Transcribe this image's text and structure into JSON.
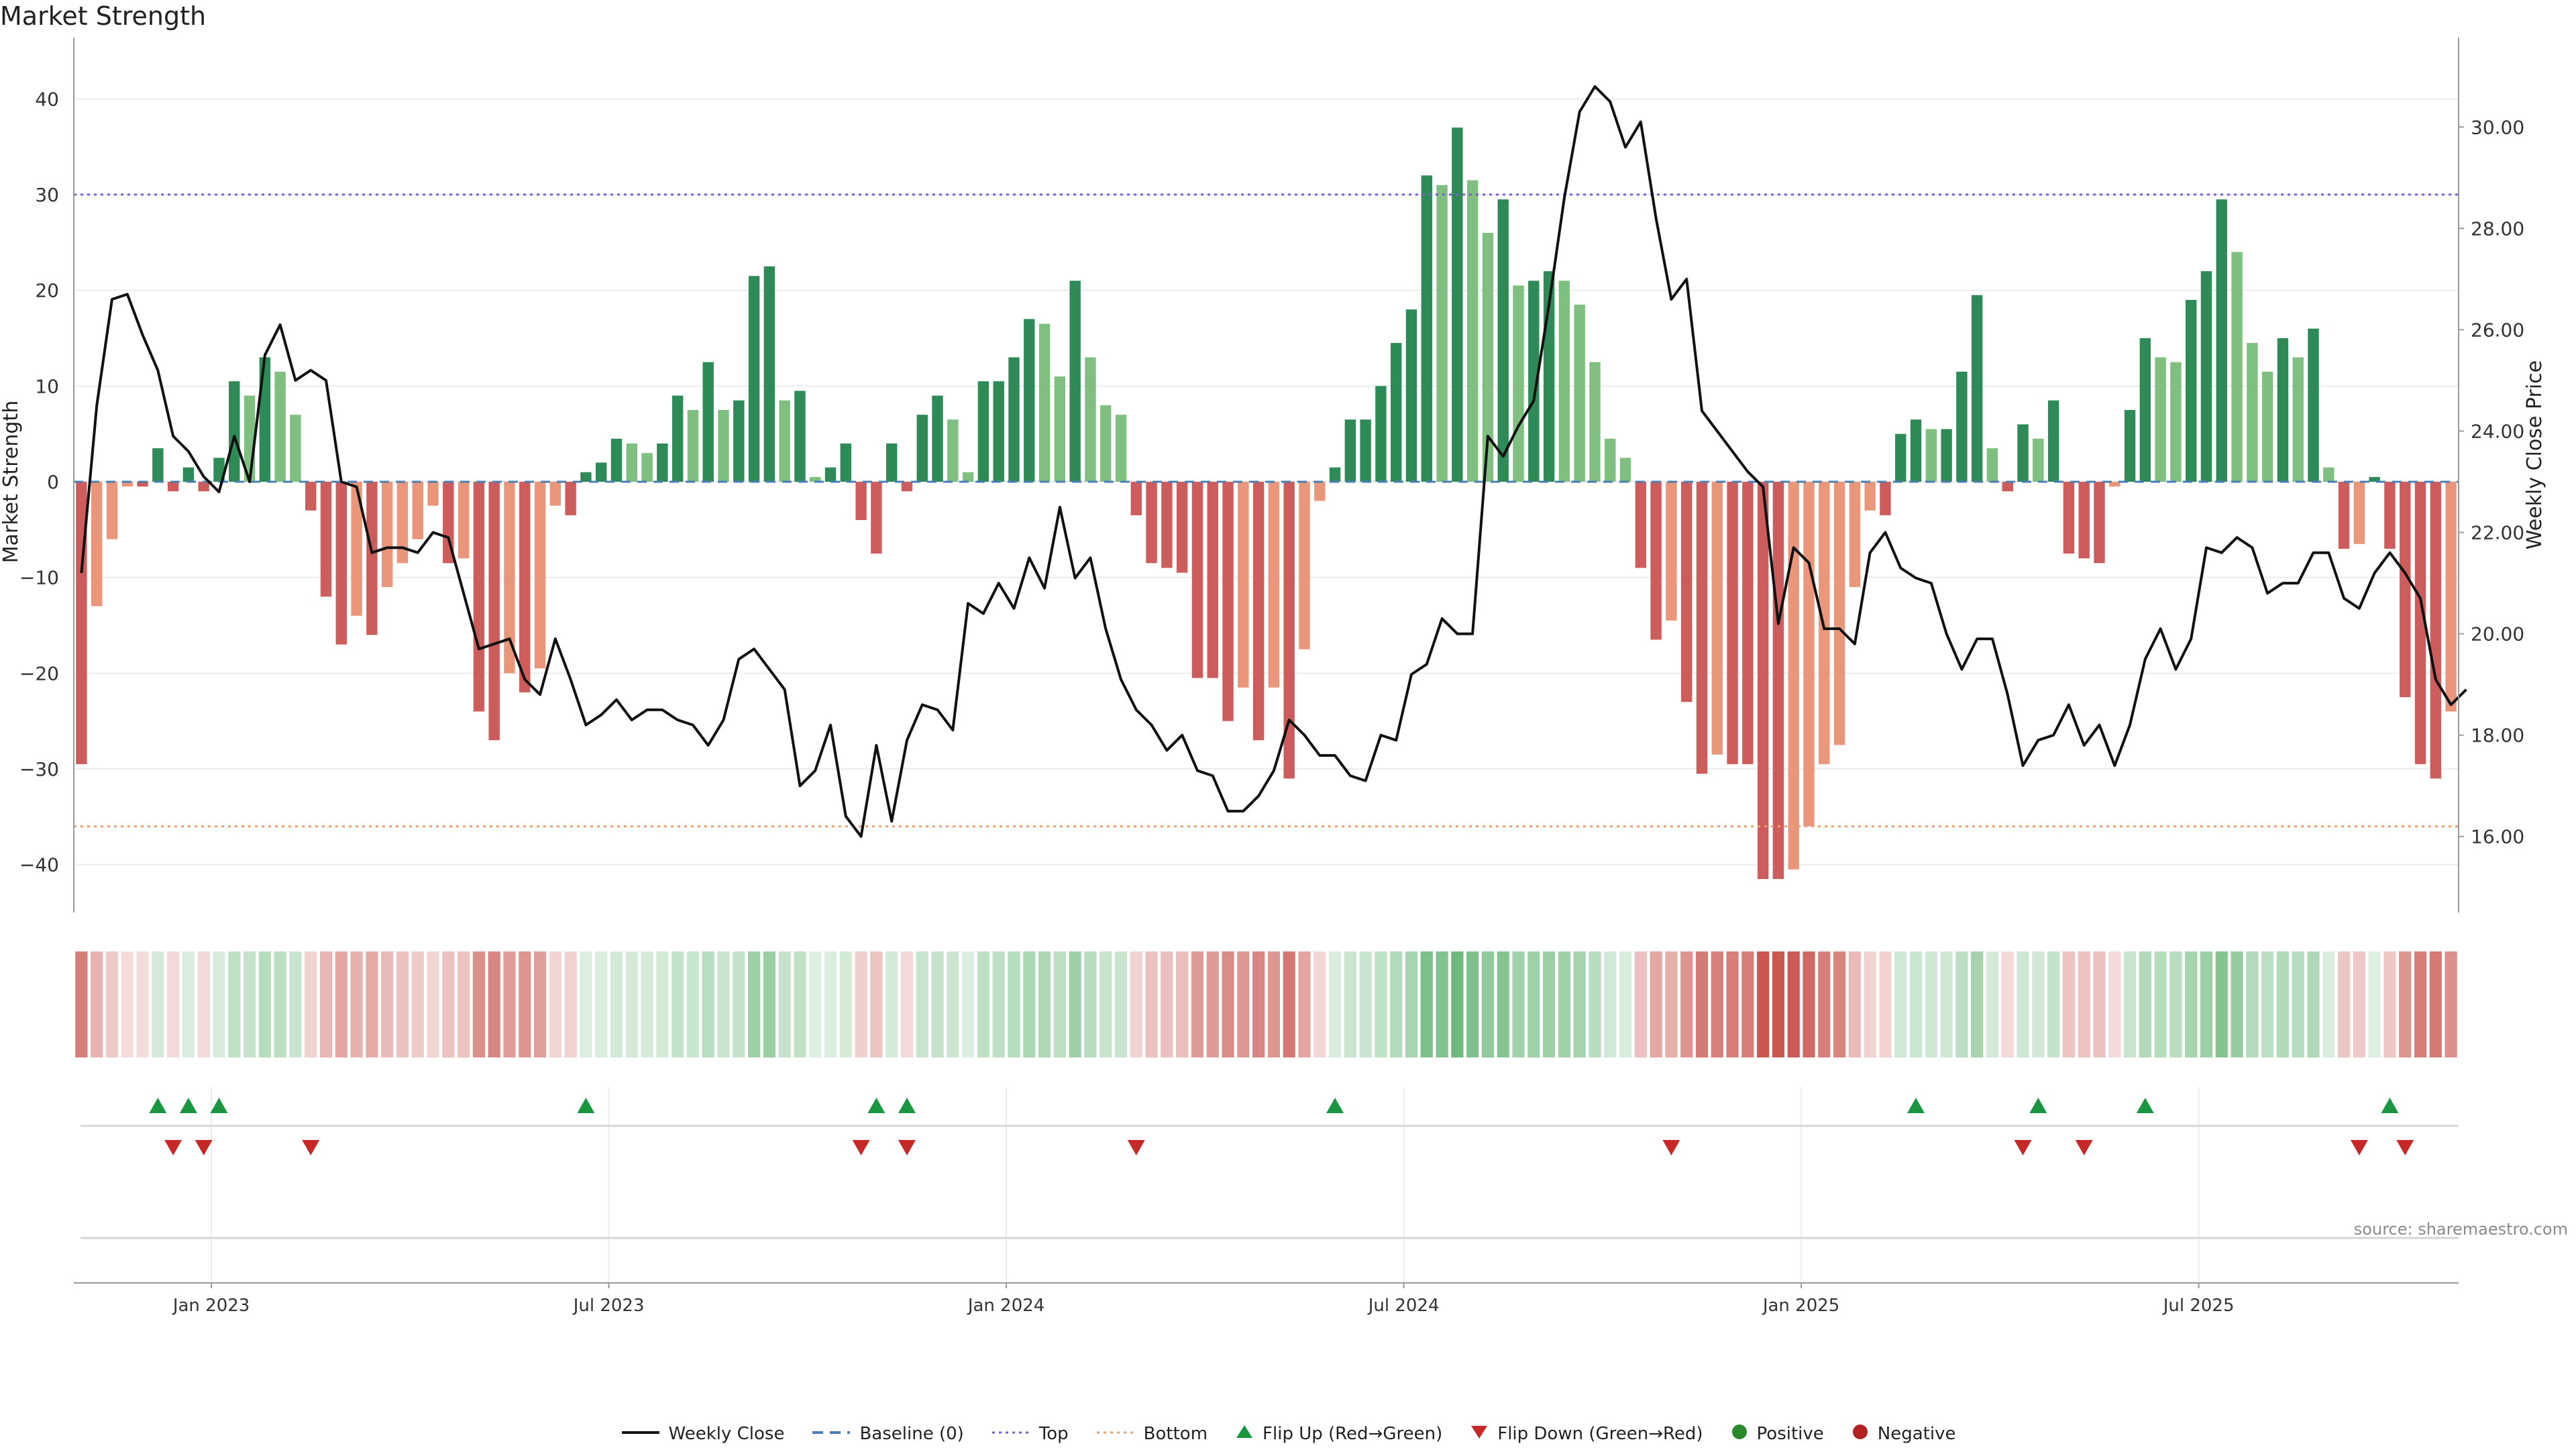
{
  "title": "Market Strength",
  "source_note": "source: sharemaestro.com",
  "colors": {
    "strong_green": "#2e8b57",
    "light_green": "#7fbf7f",
    "strong_red": "#cd5c5c",
    "light_red": "#e9967a",
    "price_line": "#111111",
    "baseline": "#4a7fb5",
    "top_line": "#7b5cd6",
    "bottom_line": "#f0a070",
    "flip_up": "#1a9641",
    "flip_down": "#c62828",
    "positive_dot": "#2a8a2a",
    "negative_dot": "#b22222",
    "grid": "#ececec"
  },
  "legend": [
    {
      "key": "weekly_close",
      "label": "Weekly Close",
      "icon": "line-icon"
    },
    {
      "key": "baseline",
      "label": "Baseline (0)",
      "icon": "dashed-line-icon"
    },
    {
      "key": "top",
      "label": "Top",
      "icon": "dotted-line-icon"
    },
    {
      "key": "bottom",
      "label": "Bottom",
      "icon": "dotted-line-icon"
    },
    {
      "key": "flip_up",
      "label": "Flip Up (Red→Green)",
      "icon": "triangle-up-icon"
    },
    {
      "key": "flip_down",
      "label": "Flip Down (Green→Red)",
      "icon": "triangle-down-icon"
    },
    {
      "key": "positive",
      "label": "Positive",
      "icon": "circle-icon"
    },
    {
      "key": "negative",
      "label": "Negative",
      "icon": "circle-icon"
    }
  ],
  "chart_data": {
    "type": "bar",
    "ylabel": "Market Strength",
    "y2label": "Weekly Close Price",
    "ylim": [
      -45,
      45
    ],
    "y2lim": [
      14.5,
      31.5
    ],
    "yticks": [
      -40,
      -30,
      -20,
      -10,
      0,
      10,
      20,
      30,
      40
    ],
    "yticks_labels": [
      "−40",
      "−30",
      "−20",
      "−10",
      "0",
      "10",
      "20",
      "30",
      "40"
    ],
    "y2ticks": [
      16,
      18,
      20,
      22,
      24,
      26,
      28,
      30
    ],
    "y2ticks_labels": [
      "16.00",
      "18.00",
      "20.00",
      "22.00",
      "24.00",
      "26.00",
      "28.00",
      "30.00"
    ],
    "date_ticks": [
      {
        "week": 9,
        "label": "Jan 2023"
      },
      {
        "week": 35,
        "label": "Jul 2023"
      },
      {
        "week": 61,
        "label": "Jan 2024"
      },
      {
        "week": 87,
        "label": "Jul 2024"
      },
      {
        "week": 113,
        "label": "Jan 2025"
      },
      {
        "week": 139,
        "label": "Jul 2025"
      }
    ],
    "top_level": 30,
    "bottom_level": -36,
    "grid": true,
    "legend_position": "bottom-center",
    "strength": [
      -29.5,
      -13,
      -6,
      -0.5,
      -0.5,
      3.5,
      -1,
      1.5,
      -1,
      2.5,
      10.5,
      9,
      13,
      11.5,
      7,
      -3,
      -12,
      -17,
      -14,
      -16,
      -11,
      -8.5,
      -6,
      -2.5,
      -8.5,
      -8,
      -24,
      -27,
      -20,
      -22,
      -19.5,
      -2.5,
      -3.5,
      1,
      2,
      4.5,
      4,
      3,
      4,
      9,
      7.5,
      12.5,
      7.5,
      8.5,
      21.5,
      22.5,
      8.5,
      9.5,
      0.5,
      1.5,
      4,
      -4,
      -7.5,
      4,
      -1,
      7,
      9,
      6.5,
      1,
      10.5,
      10.5,
      13,
      17,
      16.5,
      11,
      21,
      13,
      8,
      7,
      -3.5,
      -8.5,
      -9,
      -9.5,
      -20.5,
      -20.5,
      -25,
      -21.5,
      -27,
      -21.5,
      -31,
      -17.5,
      -2,
      1.5,
      6.5,
      6.5,
      10,
      14.5,
      18,
      32,
      31,
      37,
      31.5,
      26,
      29.5,
      20.5,
      21,
      22,
      21,
      18.5,
      12.5,
      4.5,
      2.5,
      -9,
      -16.5,
      -14.5,
      -23,
      -30.5,
      -28.5,
      -29.5,
      -29.5,
      -41.5,
      -41.5,
      -40.5,
      -36,
      -29.5,
      -27.5,
      -11,
      -3,
      -3.5,
      5,
      6.5,
      5.5,
      5.5,
      11.5,
      19.5,
      3.5,
      -1,
      6,
      4.5,
      8.5,
      -7.5,
      -8,
      -8.5,
      -0.5,
      7.5,
      15,
      13,
      12.5,
      19,
      22,
      29.5,
      24,
      14.5,
      11.5,
      15,
      13,
      16,
      1.5,
      -7,
      -6.5,
      0.5,
      -7,
      -22.5,
      -29.5,
      -31,
      -24
    ],
    "weekly_close": [
      21.2,
      24.5,
      26.6,
      26.7,
      25.9,
      25.2,
      23.9,
      23.6,
      23.1,
      22.8,
      23.9,
      23.0,
      25.5,
      26.1,
      25.0,
      25.2,
      25.0,
      23.0,
      22.9,
      21.6,
      21.7,
      21.7,
      21.6,
      22.0,
      21.9,
      20.8,
      19.7,
      19.8,
      19.9,
      19.1,
      18.8,
      19.9,
      19.1,
      18.2,
      18.4,
      18.7,
      18.3,
      18.5,
      18.5,
      18.3,
      18.2,
      17.8,
      18.3,
      19.5,
      19.7,
      19.3,
      18.9,
      17.0,
      17.3,
      18.2,
      16.4,
      16.0,
      17.8,
      16.3,
      17.9,
      18.6,
      18.5,
      18.1,
      20.6,
      20.4,
      21.0,
      20.5,
      21.5,
      20.9,
      22.5,
      21.1,
      21.5,
      20.1,
      19.1,
      18.5,
      18.2,
      17.7,
      18.0,
      17.3,
      17.2,
      16.5,
      16.5,
      16.8,
      17.3,
      18.3,
      18.0,
      17.6,
      17.6,
      17.2,
      17.1,
      18.0,
      17.9,
      19.2,
      19.4,
      20.3,
      20.0,
      20.0,
      23.9,
      23.5,
      24.1,
      24.6,
      26.5,
      28.6,
      30.3,
      30.8,
      30.5,
      29.6,
      30.1,
      28.2,
      26.6,
      27.0,
      24.4,
      24.0,
      23.6,
      23.2,
      22.9,
      20.2,
      21.7,
      21.4,
      20.1,
      20.1,
      19.8,
      21.6,
      22.0,
      21.3,
      21.1,
      21.0,
      20.0,
      19.3,
      19.9,
      19.9,
      18.8,
      17.4,
      17.9,
      18.0,
      18.6,
      17.8,
      18.2,
      17.4,
      18.2,
      19.5,
      20.1,
      19.3,
      19.9,
      21.7,
      21.6,
      21.9,
      21.7,
      20.8,
      21.0,
      21.0,
      21.6,
      21.6,
      20.7,
      20.5,
      21.2,
      21.6,
      21.2,
      20.7,
      19.1,
      18.6,
      18.9
    ],
    "flip_up_weeks": [
      5,
      7,
      9,
      33,
      52,
      54,
      82,
      120,
      128,
      135,
      151
    ],
    "flip_down_weeks": [
      6,
      8,
      15,
      51,
      54,
      69,
      104,
      127,
      131,
      149,
      152
    ]
  }
}
